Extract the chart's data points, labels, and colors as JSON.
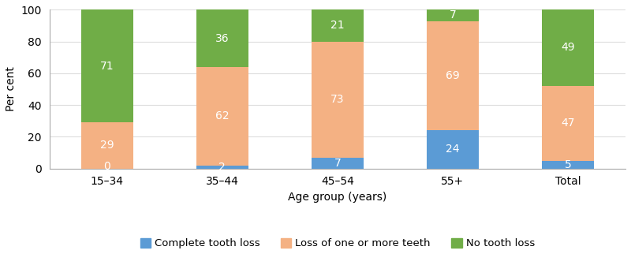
{
  "categories": [
    "15–34",
    "35–44",
    "45–54",
    "55+",
    "Total"
  ],
  "complete_tooth_loss": [
    0,
    2,
    7,
    24,
    5
  ],
  "loss_one_or_more": [
    29,
    62,
    73,
    69,
    47
  ],
  "no_tooth_loss": [
    71,
    36,
    21,
    7,
    49
  ],
  "color_complete": "#5b9bd5",
  "color_loss_more": "#f4b183",
  "color_no_loss": "#70ad47",
  "xlabel": "Age group (years)",
  "ylabel": "Per cent",
  "ylim": [
    0,
    100
  ],
  "yticks": [
    0,
    20,
    40,
    60,
    80,
    100
  ],
  "legend_labels": [
    "Complete tooth loss",
    "Loss of one or more teeth",
    "No tooth loss"
  ],
  "bar_width": 0.45,
  "text_color": "#ffffff",
  "text_fontsize": 10,
  "label_fontsize": 10,
  "tick_fontsize": 10
}
